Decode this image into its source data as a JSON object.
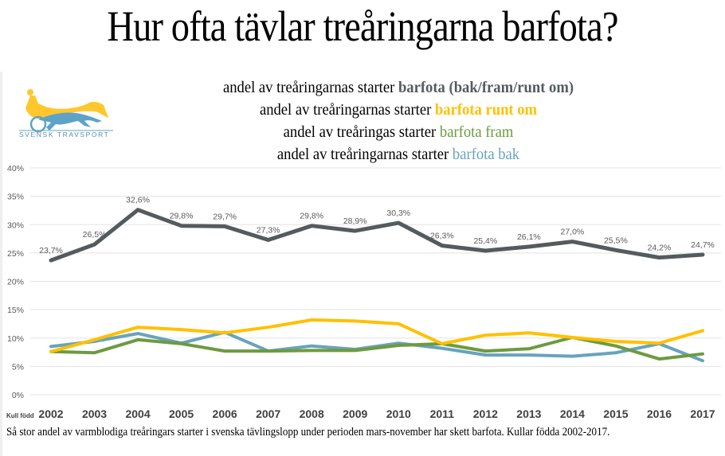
{
  "page": {
    "title": "Hur ofta tävlar treåringarna barfota?",
    "logo_text": "SVENSK TRAVSPORT",
    "caption": "Så stor andel av varmblodiga treåringars starter i svenska tävlingslopp under perioden mars-november har skett barfota.  Kullar födda 2002-2017."
  },
  "legend": [
    {
      "prefix": "andel av treåringarnas starter ",
      "highlight": "barfota (bak/fram/runt om)",
      "color": "#555b5d",
      "bold": true
    },
    {
      "prefix": "andel av treåringarnas starter ",
      "highlight": "barfota runt om",
      "color": "#ffc000",
      "bold": true
    },
    {
      "prefix": "andel av treåringas starter ",
      "highlight": "barfota fram",
      "color": "#6d9a3f",
      "bold": false
    },
    {
      "prefix": "andel av treåringarnas starter ",
      "highlight": "barfota bak",
      "color": "#67a3bd",
      "bold": false
    }
  ],
  "chart_data": {
    "type": "line",
    "title": "Hur ofta tävlar treåringarna barfota?",
    "xlabel": "Kull född",
    "ylabel": "",
    "x_prefix_label": "Kull född",
    "categories": [
      "2002",
      "2003",
      "2004",
      "2005",
      "2006",
      "2007",
      "2008",
      "2009",
      "2010",
      "2011",
      "2012",
      "2013",
      "2014",
      "2015",
      "2016",
      "2017"
    ],
    "ylim": [
      0,
      40
    ],
    "yticks": [
      0,
      5,
      10,
      15,
      20,
      25,
      30,
      35,
      40
    ],
    "ytick_labels": [
      "0%",
      "5%",
      "10%",
      "15%",
      "20%",
      "25%",
      "30%",
      "35%",
      "40%"
    ],
    "grid": true,
    "legend_position": "top-center",
    "series": [
      {
        "name": "barfota (bak/fram/runt om)",
        "color": "#555b5d",
        "values": [
          23.7,
          26.5,
          32.6,
          29.8,
          29.7,
          27.3,
          29.8,
          28.9,
          30.3,
          26.3,
          25.4,
          26.1,
          27.0,
          25.5,
          24.2,
          24.7
        ],
        "labels": [
          "23,7%",
          "26,5%",
          "32,6%",
          "29,8%",
          "29,7%",
          "27,3%",
          "29,8%",
          "28,9%",
          "30,3%",
          "26,3%",
          "25,4%",
          "26,1%",
          "27,0%",
          "25,5%",
          "24,2%",
          "24,7%"
        ]
      },
      {
        "name": "barfota runt om",
        "color": "#ffc000",
        "values": [
          7.6,
          9.7,
          11.9,
          11.5,
          10.9,
          11.9,
          13.2,
          13.0,
          12.5,
          9.0,
          10.5,
          10.9,
          10.1,
          9.4,
          9.1,
          11.3
        ]
      },
      {
        "name": "barfota fram",
        "color": "#6d9a3f",
        "values": [
          7.6,
          7.4,
          9.7,
          9.0,
          7.7,
          7.7,
          7.8,
          7.8,
          8.7,
          9.0,
          7.7,
          8.1,
          10.1,
          8.6,
          6.3,
          7.2
        ]
      },
      {
        "name": "barfota bak",
        "color": "#67a3bd",
        "values": [
          8.5,
          9.4,
          10.8,
          9.1,
          11.0,
          7.7,
          8.6,
          8.0,
          9.1,
          8.2,
          7.0,
          7.0,
          6.8,
          7.4,
          9.0,
          6.0
        ]
      }
    ]
  }
}
